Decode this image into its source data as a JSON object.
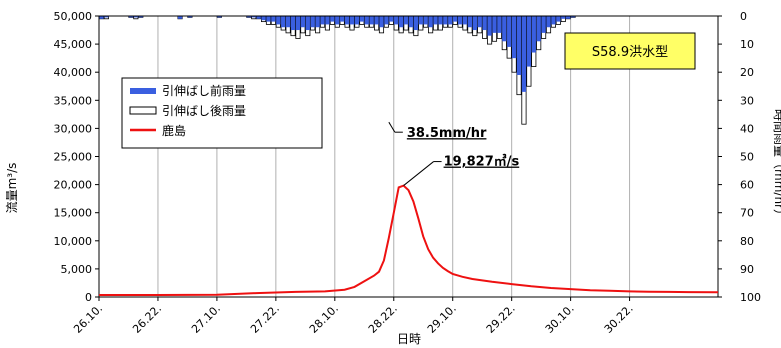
{
  "chart_data": {
    "type": "line",
    "y_left": {
      "label": "流量m³/s",
      "range": [
        0,
        50000
      ],
      "ticks": [
        "0",
        "5,000",
        "10,000",
        "15,000",
        "20,000",
        "25,000",
        "30,000",
        "35,000",
        "40,000",
        "45,000",
        "50,000"
      ]
    },
    "y_right": {
      "label": "時間雨量（mm/hr）",
      "range": [
        0,
        100
      ],
      "inverted": true,
      "ticks": [
        "0",
        "10",
        "20",
        "30",
        "40",
        "50",
        "60",
        "70",
        "80",
        "90",
        "100"
      ]
    },
    "x": {
      "label": "日時",
      "ticks": [
        "26.10.",
        "26.22.",
        "27.10.",
        "27.22.",
        "28.10.",
        "28.22.",
        "29.10.",
        "29.22.",
        "30.10.",
        "30.22."
      ],
      "tick_hours": [
        0,
        12,
        24,
        36,
        48,
        60,
        72,
        84,
        96,
        108
      ],
      "end_hours": 126
    },
    "badge": "S58.9洪水型",
    "legend": [
      {
        "label": "引伸ばし前雨量",
        "kind": "bar",
        "color": "#3a5fe0"
      },
      {
        "label": "引伸ばし後雨量",
        "kind": "bar-outline",
        "color": "#ffffff"
      },
      {
        "label": "鹿島",
        "kind": "line",
        "color": "#ee1111"
      }
    ],
    "annotations": [
      {
        "text": "38.5mm/hr",
        "x_hour": 58.5,
        "y_rain": 38.5
      },
      {
        "text": "19,827㎥/s",
        "x_hour": 62,
        "y_flow": 19827
      }
    ],
    "series": [
      {
        "name": "鹿島",
        "axis": "left",
        "color": "#ee1111",
        "x_hours": [
          0,
          12,
          24,
          32,
          40,
          46,
          50,
          52,
          54,
          56,
          57,
          58,
          59,
          60,
          61,
          62,
          63,
          64,
          65,
          66,
          67,
          68,
          69,
          70,
          71,
          72,
          74,
          76,
          80,
          84,
          88,
          92,
          96,
          100,
          104,
          108,
          112,
          116,
          120,
          126
        ],
        "values": [
          350,
          350,
          400,
          700,
          900,
          1000,
          1300,
          1800,
          2800,
          3800,
          4500,
          6500,
          10500,
          15000,
          19500,
          19827,
          19000,
          17000,
          14000,
          10800,
          8500,
          7000,
          6000,
          5200,
          4600,
          4100,
          3600,
          3200,
          2700,
          2300,
          1900,
          1600,
          1400,
          1200,
          1100,
          1000,
          950,
          900,
          880,
          850
        ]
      },
      {
        "name": "引伸ばし後雨量",
        "axis": "right",
        "x_start_hour": 0,
        "values": [
          1,
          1,
          0,
          0,
          0,
          0,
          0.5,
          1,
          0.5,
          0,
          0,
          0,
          0,
          0,
          0,
          0,
          1,
          0,
          0.5,
          0,
          0,
          0,
          0,
          0,
          0.5,
          0,
          0,
          0,
          0,
          0,
          0.5,
          1,
          1,
          2,
          3,
          3,
          4,
          5,
          6,
          7,
          8,
          6,
          7,
          5,
          6,
          4,
          5,
          3,
          4,
          3,
          4,
          5,
          4,
          3,
          4,
          4,
          5,
          6,
          4,
          3,
          5,
          6,
          5,
          6,
          7,
          5,
          4,
          6,
          5,
          5,
          4,
          4,
          3,
          4,
          5,
          6,
          7,
          6,
          8,
          10,
          9,
          8,
          12,
          15,
          20,
          28,
          38.5,
          25,
          18,
          12,
          8,
          6,
          4,
          3,
          2,
          1,
          0.5,
          0,
          0,
          0
        ]
      },
      {
        "name": "引伸ばし前雨量",
        "axis": "right",
        "x_start_hour": 0,
        "values": [
          1,
          0.5,
          0,
          0,
          0,
          0,
          0.5,
          0.5,
          0.5,
          0,
          0,
          0,
          0,
          0,
          0,
          0,
          1,
          0,
          0.5,
          0,
          0,
          0,
          0,
          0,
          0.5,
          0,
          0,
          0,
          0,
          0,
          0.5,
          0.5,
          1,
          1.5,
          2,
          2,
          3,
          4,
          4,
          5,
          5,
          4,
          5,
          4,
          4,
          3,
          3,
          2,
          3,
          2,
          3,
          3,
          3,
          2,
          3,
          3,
          3,
          4,
          3,
          2,
          3,
          4,
          3,
          4,
          5,
          3,
          3,
          4,
          3,
          3,
          3,
          3,
          2,
          3,
          3,
          4,
          5,
          4,
          5,
          7,
          6,
          6,
          9,
          11,
          15,
          21,
          27,
          18,
          13,
          9,
          6,
          4,
          3,
          2,
          1,
          1,
          0.5,
          0,
          0,
          0
        ]
      }
    ],
    "grid": "vertical",
    "legend_position": "upper-left"
  }
}
